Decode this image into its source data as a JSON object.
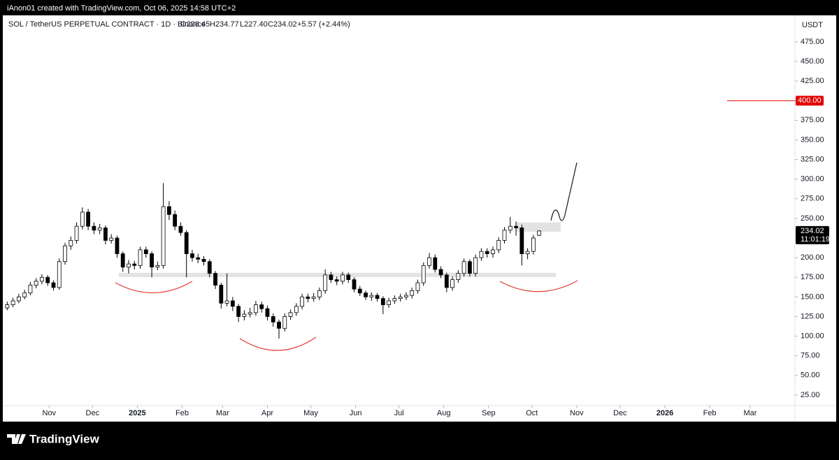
{
  "header": {
    "credit": "iAnon01 created with TradingView.com, Oct 06, 2025 14:58 UTC+2"
  },
  "footer": {
    "brand": "TradingView"
  },
  "chart_data": {
    "type": "candlestick",
    "legend": {
      "symbol": "SOL / TetherUS PERPETUAL CONTRACT · 1D · Binance",
      "open": "O228.45",
      "high": "H234.77",
      "low": "L227.40",
      "close": "C234.02",
      "change": "+5.57 (+2.44%)"
    },
    "currency": "USDT",
    "up_color": "#ffffff",
    "down_color": "#000000",
    "wick_color": "#000000",
    "xlim": [
      "2024-09-28",
      "2026-03-31"
    ],
    "xticks": [
      {
        "value": "2024-11-01",
        "label": "Nov"
      },
      {
        "value": "2024-12-01",
        "label": "Dec"
      },
      {
        "value": "2025-01-01",
        "label": "2025"
      },
      {
        "value": "2025-02-01",
        "label": "Feb"
      },
      {
        "value": "2025-03-01",
        "label": "Mar"
      },
      {
        "value": "2025-04-01",
        "label": "Apr"
      },
      {
        "value": "2025-05-01",
        "label": "May"
      },
      {
        "value": "2025-06-01",
        "label": "Jun"
      },
      {
        "value": "2025-07-01",
        "label": "Jul"
      },
      {
        "value": "2025-08-01",
        "label": "Aug"
      },
      {
        "value": "2025-09-01",
        "label": "Sep"
      },
      {
        "value": "2025-10-01",
        "label": "Oct"
      },
      {
        "value": "2025-11-01",
        "label": "Nov"
      },
      {
        "value": "2025-12-01",
        "label": "Dec"
      },
      {
        "value": "2026-01-01",
        "label": "2026"
      },
      {
        "value": "2026-02-01",
        "label": "Feb"
      },
      {
        "value": "2026-03-01",
        "label": "Mar"
      }
    ],
    "ylim": [
      12.5,
      506
    ],
    "yticks": [
      {
        "value": 25,
        "label": "25.00"
      },
      {
        "value": 50,
        "label": "50.00"
      },
      {
        "value": 75,
        "label": "75.00"
      },
      {
        "value": 100,
        "label": "100.00"
      },
      {
        "value": 125,
        "label": "125.00"
      },
      {
        "value": 150,
        "label": "150.00"
      },
      {
        "value": 175,
        "label": "175.00"
      },
      {
        "value": 200,
        "label": "200.00"
      },
      {
        "value": 225,
        "label": "225.00"
      },
      {
        "value": 250,
        "label": "250.00"
      },
      {
        "value": 275,
        "label": "275.00"
      },
      {
        "value": 300,
        "label": "300.00"
      },
      {
        "value": 325,
        "label": "325.00"
      },
      {
        "value": 350,
        "label": "350.00"
      },
      {
        "value": 375,
        "label": "375.00"
      },
      {
        "value": 400,
        "label": "400.00"
      },
      {
        "value": 425,
        "label": "425.00"
      },
      {
        "value": 450,
        "label": "450.00"
      },
      {
        "value": 475,
        "label": "475.00"
      }
    ],
    "target_line": {
      "value": 400,
      "label": "400.00",
      "color": "#e00000"
    },
    "last_price": {
      "value": 234.02,
      "countdown": "11:01:19"
    },
    "support_level": 178,
    "resistance_zone": [
      233,
      245
    ],
    "x": [
      "2024-10-03",
      "2024-10-07",
      "2024-10-11",
      "2024-10-15",
      "2024-10-19",
      "2024-10-23",
      "2024-10-27",
      "2024-10-31",
      "2024-11-04",
      "2024-11-08",
      "2024-11-12",
      "2024-11-16",
      "2024-11-20",
      "2024-11-24",
      "2024-11-28",
      "2024-12-02",
      "2024-12-06",
      "2024-12-10",
      "2024-12-14",
      "2024-12-18",
      "2024-12-22",
      "2024-12-26",
      "2024-12-30",
      "2025-01-03",
      "2025-01-07",
      "2025-01-11",
      "2025-01-15",
      "2025-01-19",
      "2025-01-23",
      "2025-01-27",
      "2025-01-31",
      "2025-02-04",
      "2025-02-08",
      "2025-02-12",
      "2025-02-16",
      "2025-02-20",
      "2025-02-24",
      "2025-02-28",
      "2025-03-04",
      "2025-03-08",
      "2025-03-12",
      "2025-03-16",
      "2025-03-20",
      "2025-03-24",
      "2025-03-28",
      "2025-04-01",
      "2025-04-05",
      "2025-04-09",
      "2025-04-13",
      "2025-04-17",
      "2025-04-21",
      "2025-04-25",
      "2025-04-29",
      "2025-05-03",
      "2025-05-07",
      "2025-05-11",
      "2025-05-15",
      "2025-05-19",
      "2025-05-23",
      "2025-05-27",
      "2025-05-31",
      "2025-06-04",
      "2025-06-08",
      "2025-06-12",
      "2025-06-16",
      "2025-06-20",
      "2025-06-24",
      "2025-06-28",
      "2025-07-02",
      "2025-07-06",
      "2025-07-10",
      "2025-07-14",
      "2025-07-18",
      "2025-07-22",
      "2025-07-26",
      "2025-07-30",
      "2025-08-03",
      "2025-08-07",
      "2025-08-11",
      "2025-08-15",
      "2025-08-19",
      "2025-08-23",
      "2025-08-27",
      "2025-08-31",
      "2025-09-04",
      "2025-09-08",
      "2025-09-12",
      "2025-09-16",
      "2025-09-20",
      "2025-09-24",
      "2025-09-28",
      "2025-10-02",
      "2025-10-06"
    ],
    "candles": [
      [
        136,
        144,
        133,
        140
      ],
      [
        140,
        149,
        137,
        145
      ],
      [
        145,
        154,
        142,
        150
      ],
      [
        150,
        159,
        147,
        155
      ],
      [
        155,
        169,
        152,
        165
      ],
      [
        165,
        174,
        161,
        170
      ],
      [
        170,
        179,
        166,
        175
      ],
      [
        175,
        178,
        164,
        168
      ],
      [
        168,
        171,
        158,
        162
      ],
      [
        162,
        199,
        159,
        195
      ],
      [
        195,
        219,
        191,
        215
      ],
      [
        215,
        227,
        210,
        222
      ],
      [
        222,
        245,
        218,
        240
      ],
      [
        240,
        264,
        236,
        258
      ],
      [
        258,
        262,
        235,
        240
      ],
      [
        240,
        245,
        230,
        235
      ],
      [
        235,
        243,
        230,
        238
      ],
      [
        238,
        241,
        217,
        222
      ],
      [
        222,
        230,
        218,
        225
      ],
      [
        225,
        228,
        200,
        205
      ],
      [
        205,
        208,
        182,
        188
      ],
      [
        188,
        197,
        180,
        192
      ],
      [
        192,
        196,
        185,
        190
      ],
      [
        190,
        214,
        186,
        210
      ],
      [
        210,
        214,
        200,
        205
      ],
      [
        205,
        208,
        175,
        188
      ],
      [
        188,
        195,
        184,
        190
      ],
      [
        190,
        295,
        186,
        265
      ],
      [
        265,
        272,
        248,
        255
      ],
      [
        255,
        260,
        235,
        240
      ],
      [
        240,
        245,
        228,
        232
      ],
      [
        232,
        235,
        175,
        205
      ],
      [
        205,
        210,
        195,
        200
      ],
      [
        200,
        205,
        193,
        198
      ],
      [
        198,
        202,
        190,
        195
      ],
      [
        195,
        198,
        175,
        180
      ],
      [
        180,
        183,
        160,
        165
      ],
      [
        165,
        168,
        135,
        142
      ],
      [
        142,
        180,
        138,
        145
      ],
      [
        145,
        150,
        132,
        138
      ],
      [
        138,
        141,
        118,
        125
      ],
      [
        125,
        133,
        120,
        128
      ],
      [
        128,
        136,
        124,
        130
      ],
      [
        130,
        145,
        126,
        140
      ],
      [
        140,
        144,
        130,
        135
      ],
      [
        135,
        139,
        120,
        125
      ],
      [
        125,
        129,
        112,
        118
      ],
      [
        118,
        121,
        97,
        110
      ],
      [
        110,
        129,
        106,
        125
      ],
      [
        125,
        134,
        121,
        130
      ],
      [
        130,
        142,
        126,
        138
      ],
      [
        138,
        154,
        134,
        150
      ],
      [
        150,
        154,
        143,
        148
      ],
      [
        148,
        155,
        144,
        150
      ],
      [
        150,
        162,
        146,
        158
      ],
      [
        158,
        185,
        154,
        178
      ],
      [
        178,
        182,
        168,
        172
      ],
      [
        172,
        176,
        165,
        170
      ],
      [
        170,
        182,
        166,
        178
      ],
      [
        178,
        181,
        168,
        172
      ],
      [
        172,
        175,
        156,
        160
      ],
      [
        160,
        164,
        151,
        155
      ],
      [
        155,
        158,
        146,
        150
      ],
      [
        150,
        156,
        145,
        152
      ],
      [
        152,
        155,
        144,
        148
      ],
      [
        148,
        151,
        128,
        140
      ],
      [
        140,
        149,
        136,
        145
      ],
      [
        145,
        152,
        141,
        148
      ],
      [
        148,
        154,
        144,
        150
      ],
      [
        150,
        156,
        146,
        152
      ],
      [
        152,
        162,
        148,
        158
      ],
      [
        158,
        172,
        154,
        168
      ],
      [
        168,
        194,
        164,
        190
      ],
      [
        190,
        206,
        186,
        200
      ],
      [
        200,
        204,
        181,
        185
      ],
      [
        185,
        189,
        174,
        178
      ],
      [
        178,
        181,
        156,
        162
      ],
      [
        162,
        176,
        158,
        172
      ],
      [
        172,
        184,
        168,
        180
      ],
      [
        180,
        199,
        176,
        195
      ],
      [
        195,
        198,
        176,
        180
      ],
      [
        180,
        204,
        176,
        200
      ],
      [
        200,
        212,
        196,
        208
      ],
      [
        208,
        212,
        200,
        205
      ],
      [
        205,
        214,
        200,
        210
      ],
      [
        210,
        226,
        206,
        222
      ],
      [
        222,
        239,
        218,
        235
      ],
      [
        235,
        252,
        231,
        240
      ],
      [
        240,
        246,
        228,
        238
      ],
      [
        238,
        242,
        190,
        205
      ],
      [
        205,
        212,
        198,
        208
      ],
      [
        208,
        229,
        204,
        225
      ],
      [
        228.45,
        234.77,
        227.4,
        234.02
      ]
    ]
  }
}
